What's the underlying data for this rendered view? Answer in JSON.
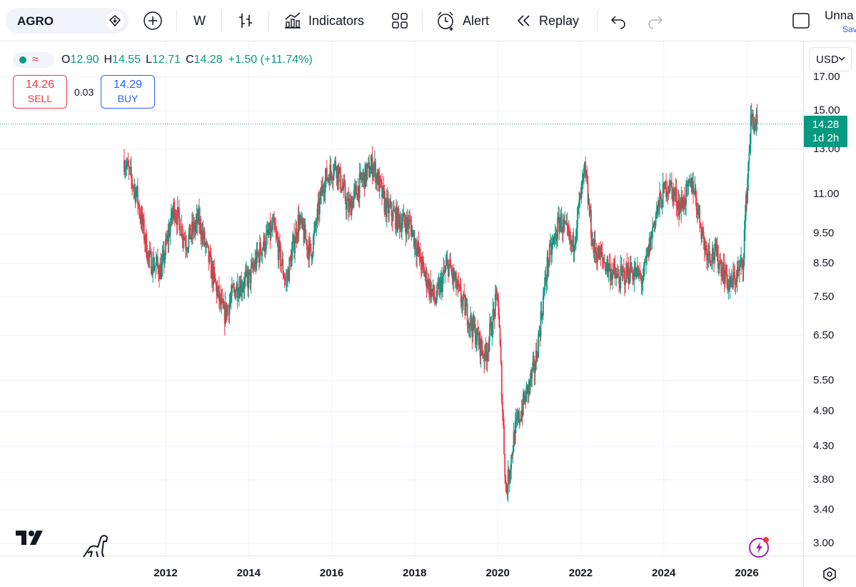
{
  "toolbar": {
    "symbol": "AGRO",
    "interval": "W",
    "indicators_label": "Indicators",
    "alert_label": "Alert",
    "replay_label": "Replay",
    "layout_name": "Unna",
    "save_label": "Sav",
    "icons": [
      "diamond-download-icon",
      "plus-circle-icon",
      "bar-style-icon",
      "indicators-icon",
      "templates-icon",
      "alarm-clock-icon",
      "replay-icon",
      "undo-icon",
      "redo-icon",
      "fullscreen-icon"
    ]
  },
  "legend": {
    "o_label": "O",
    "o_value": "12.90",
    "h_label": "H",
    "h_value": "14.55",
    "l_label": "L",
    "l_value": "12.71",
    "c_label": "C",
    "c_value": "14.28",
    "change": "+1.50 (+11.74%)",
    "status_color": "#089981"
  },
  "trade": {
    "sell_price": "14.26",
    "sell_label": "SELL",
    "spread": "0.03",
    "buy_price": "14.29",
    "buy_label": "BUY"
  },
  "axis": {
    "currency": "USD",
    "last_price": "14.28",
    "countdown": "1d 2h"
  },
  "colors": {
    "up": "#089981",
    "down": "#f23645",
    "accent": "#2962ff"
  },
  "chart_data": {
    "type": "candlestick",
    "scale": "log",
    "y_ticks": [
      "17.00",
      "15.00",
      "13.00",
      "11.00",
      "9.50",
      "8.50",
      "7.50",
      "6.50",
      "5.50",
      "4.90",
      "4.30",
      "3.80",
      "3.40",
      "3.00"
    ],
    "x_ticks": [
      "2012",
      "2014",
      "2016",
      "2018",
      "2020",
      "2022",
      "2024",
      "2026"
    ],
    "ylim": [
      2.85,
      17.3
    ],
    "xlim": [
      2010.2,
      2026.9
    ],
    "last_value": 14.28,
    "series": [
      {
        "x": [
          2011.0,
          2011.3,
          2011.6,
          2011.9,
          2012.2,
          2012.5,
          2012.8,
          2013.1,
          2013.4,
          2013.7,
          2014.0,
          2014.3,
          2014.6,
          2014.9,
          2015.2,
          2015.5,
          2015.8,
          2016.1,
          2016.4,
          2016.7,
          2017.0,
          2017.3,
          2017.6,
          2017.9,
          2018.2,
          2018.5,
          2018.8,
          2019.1,
          2019.4,
          2019.7,
          2020.0,
          2020.2,
          2020.4,
          2020.6,
          2020.9,
          2021.2,
          2021.5,
          2021.8,
          2022.1,
          2022.3,
          2022.6,
          2022.9,
          2023.2,
          2023.5,
          2023.8,
          2024.1,
          2024.4,
          2024.7,
          2025.0,
          2025.3,
          2025.6,
          2025.9,
          2026.1,
          2026.25
        ],
        "y": [
          12.5,
          11.0,
          8.6,
          8.3,
          10.5,
          9.2,
          10.0,
          8.3,
          7.0,
          7.8,
          8.0,
          9.0,
          9.7,
          7.9,
          10.0,
          8.8,
          11.5,
          12.3,
          10.4,
          11.5,
          12.3,
          10.5,
          10.0,
          9.8,
          8.3,
          7.4,
          8.5,
          7.5,
          6.7,
          6.0,
          7.6,
          3.6,
          4.5,
          5.0,
          5.8,
          8.5,
          10.0,
          9.0,
          12.0,
          9.0,
          8.5,
          8.0,
          8.3,
          8.0,
          10.2,
          11.5,
          10.5,
          11.5,
          9.0,
          8.7,
          7.8,
          8.5,
          14.5,
          14.28
        ]
      }
    ]
  }
}
